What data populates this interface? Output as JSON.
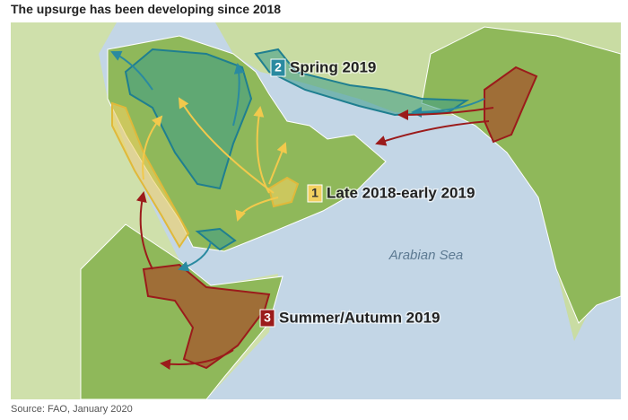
{
  "header": {
    "title": "The upsurge has been developing since 2018"
  },
  "map": {
    "phases": [
      {
        "number": "1",
        "label": "Late 2018-early 2019"
      },
      {
        "number": "2",
        "label": "Spring 2019"
      },
      {
        "number": "3",
        "label": "Summer/Autumn 2019"
      }
    ],
    "sea_label": "Arabian Sea"
  },
  "footer": {
    "source": "Source: FAO, January 2020"
  }
}
